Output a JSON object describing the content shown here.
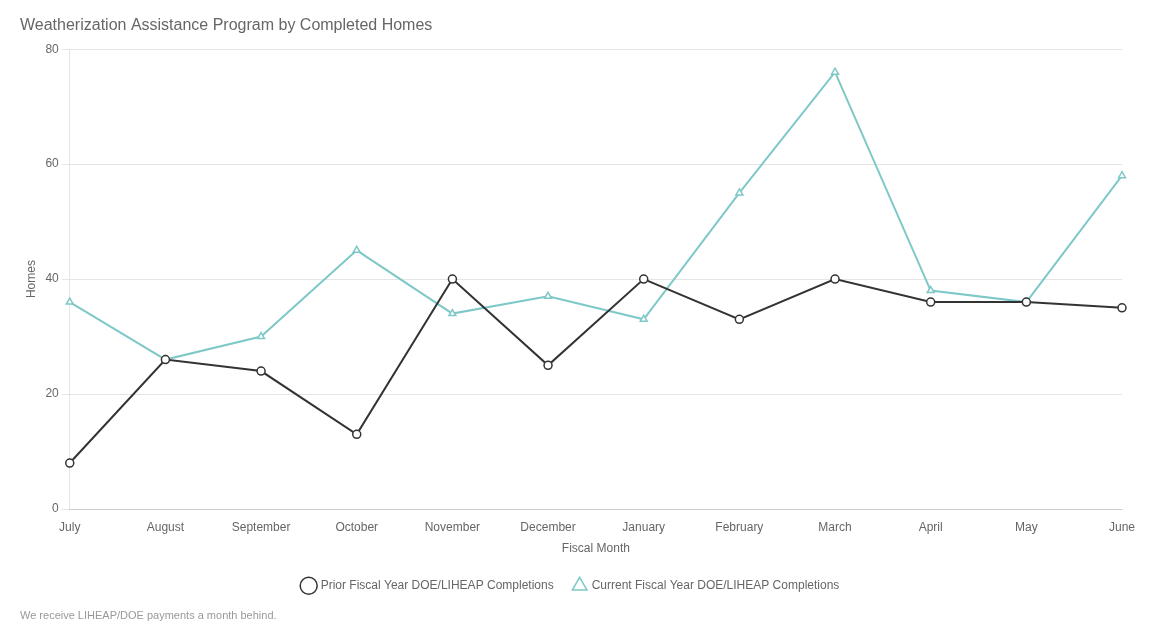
{
  "chart_data": {
    "type": "line",
    "title": "Weatherization Assistance Program by Completed Homes",
    "xlabel": "Fiscal Month",
    "ylabel": "Homes",
    "annotations": [
      "We receive LIHEAP/DOE payments a month behind."
    ],
    "categories": [
      "July",
      "August",
      "September",
      "October",
      "November",
      "December",
      "January",
      "February",
      "March",
      "April",
      "May",
      "June"
    ],
    "series": [
      {
        "name": "Prior Fiscal Year DOE/LIHEAP Completions",
        "color": "#333333",
        "marker": "circle",
        "values": [
          8,
          26,
          24,
          13,
          40,
          25,
          40,
          33,
          40,
          36,
          36,
          35
        ]
      },
      {
        "name": "Current Fiscal Year DOE/LIHEAP Completions",
        "color": "#7ec8c8",
        "marker": "triangle",
        "values": [
          36,
          26,
          30,
          45,
          34,
          37,
          33,
          55,
          76,
          38,
          36,
          58
        ]
      }
    ],
    "ylim": [
      0,
      80
    ],
    "yticks": [
      0,
      20,
      40,
      60,
      80
    ],
    "grid": true,
    "legend": "bottom"
  }
}
